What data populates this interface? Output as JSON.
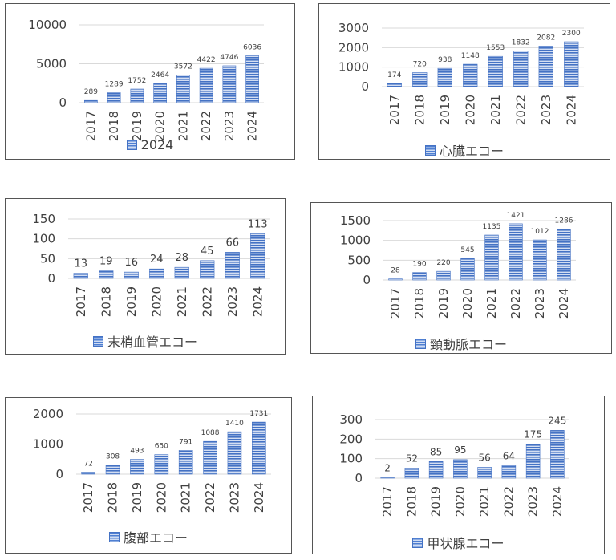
{
  "colors": {
    "bar": "#4472c4",
    "bar_light": "#d3def3",
    "grid": "#d9d9d9",
    "text": "#404040"
  },
  "legend_icon": "striped-blue-square",
  "chart_data": [
    {
      "type": "bar",
      "categories": [
        "2017",
        "2018",
        "2019",
        "2020",
        "2021",
        "2022",
        "2023",
        "2024"
      ],
      "series": [
        {
          "name": "2024",
          "values": [
            289,
            1289,
            1752,
            2464,
            3572,
            4422,
            4746,
            6036
          ]
        }
      ],
      "ylim": [
        0,
        10000
      ],
      "yticks": [
        0,
        5000,
        10000
      ],
      "grid": true,
      "legend": "bottom"
    },
    {
      "type": "bar",
      "categories": [
        "2017",
        "2018",
        "2019",
        "2020",
        "2021",
        "2022",
        "2023",
        "2024"
      ],
      "series": [
        {
          "name": "心臓エコー",
          "values": [
            174,
            720,
            938,
            1148,
            1553,
            1832,
            2082,
            2300
          ]
        }
      ],
      "ylim": [
        0,
        3000
      ],
      "yticks": [
        0,
        1000,
        2000,
        3000
      ],
      "grid": true,
      "legend": "bottom"
    },
    {
      "type": "bar",
      "categories": [
        "2017",
        "2018",
        "2019",
        "2020",
        "2021",
        "2022",
        "2023",
        "2024"
      ],
      "series": [
        {
          "name": "末梢血管エコー",
          "values": [
            13,
            19,
            16,
            24,
            28,
            45,
            66,
            113
          ]
        }
      ],
      "ylim": [
        0,
        150
      ],
      "yticks": [
        0,
        50,
        100,
        150
      ],
      "grid": true,
      "legend": "bottom"
    },
    {
      "type": "bar",
      "categories": [
        "2017",
        "2018",
        "2019",
        "2020",
        "2021",
        "2022",
        "2023",
        "2024"
      ],
      "series": [
        {
          "name": "頸動脈エコー",
          "values": [
            28,
            190,
            220,
            545,
            1135,
            1421,
            1012,
            1286
          ]
        }
      ],
      "ylim": [
        0,
        1500
      ],
      "yticks": [
        0,
        500,
        1000,
        1500
      ],
      "grid": true,
      "legend": "bottom"
    },
    {
      "type": "bar",
      "categories": [
        "2017",
        "2018",
        "2019",
        "2020",
        "2021",
        "2022",
        "2023",
        "2024"
      ],
      "series": [
        {
          "name": "腹部エコー",
          "values": [
            72,
            308,
            493,
            650,
            791,
            1088,
            1410,
            1731
          ]
        }
      ],
      "ylim": [
        0,
        2000
      ],
      "yticks": [
        0,
        1000,
        2000
      ],
      "grid": true,
      "legend": "bottom"
    },
    {
      "type": "bar",
      "categories": [
        "2017",
        "2018",
        "2019",
        "2020",
        "2021",
        "2022",
        "2023",
        "2024"
      ],
      "series": [
        {
          "name": "甲状腺エコー",
          "values": [
            2,
            52,
            85,
            95,
            56,
            64,
            175,
            245
          ]
        }
      ],
      "ylim": [
        0,
        300
      ],
      "yticks": [
        0,
        100,
        200,
        300
      ],
      "grid": true,
      "legend": "bottom"
    }
  ]
}
